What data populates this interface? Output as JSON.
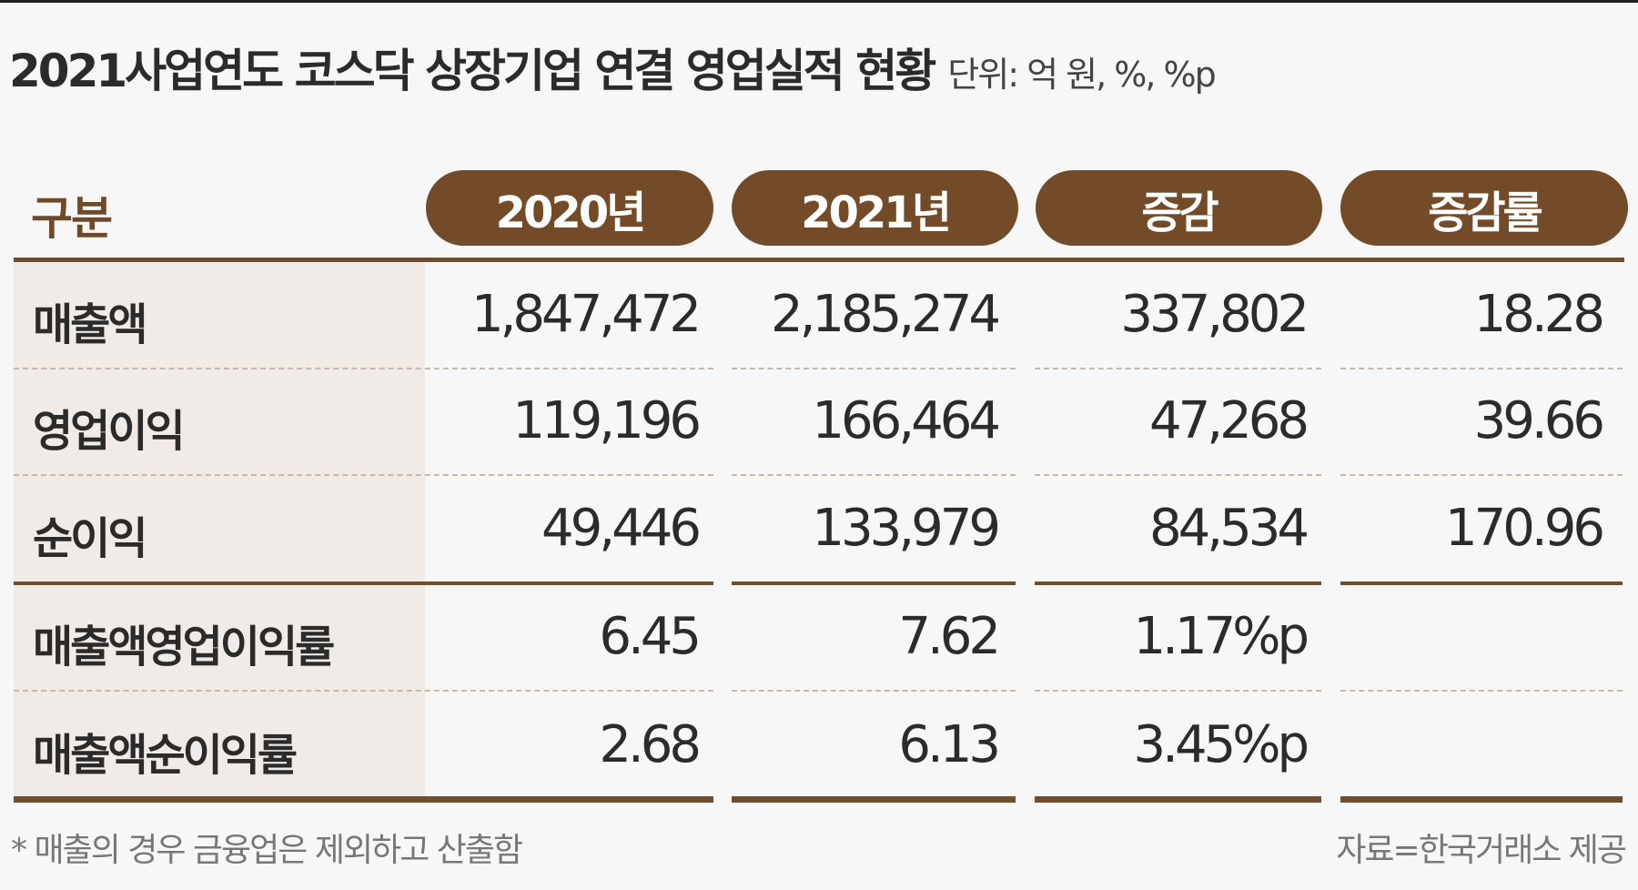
{
  "title": "2021사업연도 코스닥 상장기업 연결 영업실적 현황",
  "unit": "단위: 억 원, %, %p",
  "header": {
    "label": "구분",
    "columns": [
      "2020년",
      "2021년",
      "증감",
      "증감률"
    ]
  },
  "rows": [
    {
      "label": "매출액",
      "values": [
        "1,847,472",
        "2,185,274",
        "337,802",
        "18.28"
      ]
    },
    {
      "label": "영업이익",
      "values": [
        "119,196",
        "166,464",
        "47,268",
        "39.66"
      ]
    },
    {
      "label": "순이익",
      "values": [
        "49,446",
        "133,979",
        "84,534",
        "170.96"
      ]
    },
    {
      "label": "매출액영업이익률",
      "values": [
        "6.45",
        "7.62",
        "1.17%p",
        ""
      ]
    },
    {
      "label": "매출액순이익률",
      "values": [
        "2.68",
        "6.13",
        "3.45%p",
        ""
      ]
    }
  ],
  "footnote": "* 매출의 경우 금융업은 제외하고 산출함",
  "source": "자료=한국거래소 제공",
  "colors": {
    "accent": "#744b28",
    "label_bg": "#f0ebe6",
    "background": "#f7f7f7"
  }
}
